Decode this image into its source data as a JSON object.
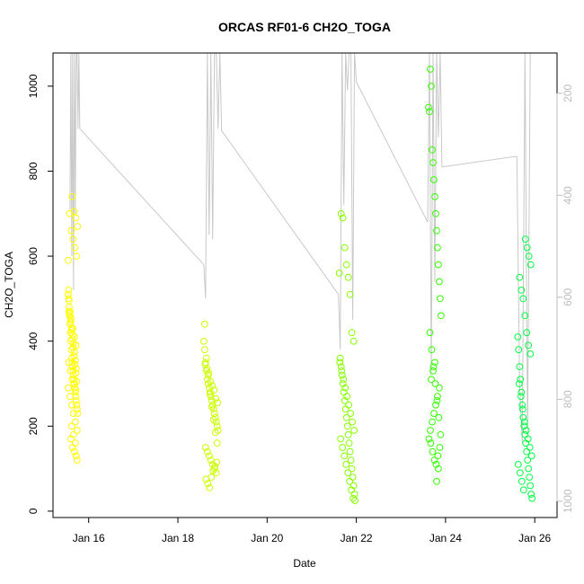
{
  "chart_data": {
    "type": "scatter",
    "title": "ORCAS RF01-6 CH2O_TOGA",
    "xlabel": "Date",
    "ylabel": "CH2O_TOGA",
    "x_ticks": [
      {
        "value": 16,
        "label": "Jan 16"
      },
      {
        "value": 18,
        "label": "Jan 18"
      },
      {
        "value": 20,
        "label": "Jan 20"
      },
      {
        "value": 22,
        "label": "Jan 22"
      },
      {
        "value": 24,
        "label": "Jan 24"
      },
      {
        "value": 26,
        "label": "Jan 26"
      }
    ],
    "xlim": [
      15.2,
      26.5
    ],
    "ylim": [
      -15,
      1078
    ],
    "y_ticks": [
      0,
      200,
      400,
      600,
      800,
      1000
    ],
    "y2_ticks": [
      200,
      400,
      600,
      800,
      1000
    ],
    "y2lim": [
      1032,
      121
    ],
    "grid": false,
    "colors": {
      "flight1": "#ffff00",
      "flight2": "#ccff00",
      "flight3": "#88ff00",
      "flight4": "#33ff00",
      "flight5": "#00ff44",
      "line": "#c8c8c8",
      "right_axis": "#bdbdbd"
    },
    "series": [
      {
        "x": [
          15.54,
          15.55,
          15.56,
          15.57,
          15.58,
          15.59,
          15.6,
          15.61,
          15.62,
          15.63,
          15.64,
          15.65,
          15.66,
          15.67,
          15.68,
          15.69,
          15.7,
          15.71,
          15.72,
          15.73,
          15.74,
          15.75,
          15.54,
          15.56,
          15.58,
          15.6,
          15.62,
          15.64,
          15.66,
          15.68,
          15.7,
          15.72,
          15.55,
          15.57,
          15.59,
          15.61,
          15.63,
          15.65,
          15.67,
          15.69,
          15.71,
          15.73,
          15.54,
          15.58,
          15.62,
          15.66,
          15.7,
          15.74,
          15.56,
          15.6,
          15.64,
          15.68,
          15.72,
          15.55,
          15.59,
          15.63,
          15.67,
          15.71,
          15.57,
          15.61,
          15.65,
          15.69,
          15.73,
          15.6,
          15.64,
          15.68,
          15.72,
          15.62,
          15.66,
          15.7,
          15.74,
          15.63,
          15.67,
          15.71,
          15.75
        ],
        "y": [
          590,
          520,
          480,
          460,
          440,
          420,
          400,
          380,
          360,
          350,
          340,
          330,
          320,
          310,
          300,
          290,
          280,
          270,
          260,
          250,
          240,
          230,
          510,
          495,
          470,
          455,
          430,
          415,
          395,
          375,
          355,
          335,
          500,
          465,
          445,
          425,
          405,
          385,
          365,
          345,
          325,
          305,
          290,
          270,
          250,
          230,
          210,
          190,
          470,
          450,
          430,
          410,
          390,
          350,
          330,
          310,
          300,
          285,
          700,
          660,
          640,
          620,
          600,
          170,
          150,
          140,
          130,
          200,
          180,
          160,
          120,
          740,
          705,
          690,
          670
        ]
      },
      {
        "x": [
          18.58,
          18.6,
          18.62,
          18.64,
          18.66,
          18.68,
          18.7,
          18.72,
          18.74,
          18.76,
          18.78,
          18.8,
          18.82,
          18.84,
          18.86,
          18.88,
          18.9,
          18.6,
          18.64,
          18.68,
          18.72,
          18.76,
          18.8,
          18.84,
          18.88,
          18.62,
          18.66,
          18.7,
          18.74,
          18.78,
          18.82,
          18.86,
          18.63,
          18.67,
          18.71,
          18.75,
          18.79,
          18.83,
          18.87,
          18.61,
          18.65,
          18.69,
          18.73,
          18.77,
          18.81,
          18.85,
          18.89
        ],
        "y": [
          400,
          380,
          350,
          330,
          310,
          300,
          290,
          280,
          270,
          260,
          250,
          240,
          230,
          220,
          210,
          200,
          190,
          440,
          360,
          320,
          275,
          245,
          215,
          185,
          160,
          150,
          140,
          130,
          120,
          110,
          100,
          90,
          75,
          65,
          55,
          80,
          95,
          105,
          115,
          345,
          335,
          325,
          305,
          295,
          285,
          265,
          255
        ]
      },
      {
        "x": [
          21.62,
          21.64,
          21.66,
          21.68,
          21.7,
          21.72,
          21.74,
          21.76,
          21.78,
          21.8,
          21.82,
          21.84,
          21.86,
          21.88,
          21.9,
          21.92,
          21.94,
          21.96,
          21.63,
          21.67,
          21.71,
          21.75,
          21.79,
          21.83,
          21.87,
          21.91,
          21.95,
          21.65,
          21.69,
          21.73,
          21.77,
          21.81,
          21.85,
          21.89,
          21.93,
          21.97,
          21.66,
          21.7,
          21.74,
          21.78,
          21.82,
          21.86,
          21.9,
          21.94
        ],
        "y": [
          560,
          360,
          340,
          320,
          300,
          280,
          260,
          240,
          220,
          200,
          180,
          160,
          140,
          120,
          100,
          80,
          60,
          40,
          350,
          330,
          310,
          290,
          270,
          250,
          230,
          210,
          190,
          170,
          150,
          130,
          110,
          90,
          70,
          50,
          30,
          25,
          700,
          690,
          620,
          580,
          550,
          510,
          420,
          400
        ]
      },
      {
        "x": [
          23.62,
          23.64,
          23.66,
          23.68,
          23.7,
          23.72,
          23.74,
          23.76,
          23.78,
          23.8,
          23.82,
          23.84,
          23.86,
          23.88,
          23.9,
          23.65,
          23.69,
          23.73,
          23.77,
          23.81,
          23.85,
          23.89,
          23.67,
          23.71,
          23.75,
          23.79,
          23.83,
          23.87,
          23.63,
          23.66,
          23.7,
          23.74,
          23.78,
          23.82,
          23.86,
          23.68,
          23.72,
          23.76,
          23.8,
          23.84
        ],
        "y": [
          950,
          940,
          1040,
          1000,
          850,
          820,
          780,
          740,
          700,
          660,
          620,
          580,
          540,
          500,
          460,
          420,
          380,
          340,
          300,
          260,
          220,
          180,
          160,
          140,
          120,
          110,
          130,
          150,
          170,
          190,
          210,
          230,
          250,
          270,
          290,
          310,
          330,
          350,
          70,
          100
        ]
      },
      {
        "x": [
          25.62,
          25.64,
          25.66,
          25.68,
          25.7,
          25.72,
          25.74,
          25.76,
          25.78,
          25.8,
          25.82,
          25.84,
          25.86,
          25.88,
          25.9,
          25.92,
          25.94,
          25.65,
          25.69,
          25.73,
          25.77,
          25.81,
          25.85,
          25.89,
          25.93,
          25.63,
          25.67,
          25.71,
          25.75,
          25.79,
          25.83,
          25.87,
          25.91,
          25.66,
          25.7,
          25.74,
          25.78,
          25.82,
          25.86,
          25.9
        ],
        "y": [
          410,
          380,
          340,
          310,
          280,
          250,
          220,
          200,
          180,
          160,
          140,
          120,
          100,
          80,
          60,
          40,
          30,
          300,
          270,
          240,
          210,
          190,
          170,
          150,
          130,
          110,
          90,
          70,
          50,
          640,
          620,
          600,
          580,
          550,
          520,
          500,
          460,
          420,
          390,
          370
        ]
      }
    ],
    "line_series": {
      "x": [
        15.58,
        15.6,
        15.62,
        15.64,
        15.66,
        15.68,
        15.7,
        15.72,
        15.74,
        15.76,
        15.78,
        15.8,
        18.58,
        18.62,
        18.66,
        18.7,
        18.74,
        18.78,
        18.82,
        18.86,
        18.9,
        18.94,
        18.98,
        21.6,
        21.64,
        21.68,
        21.72,
        21.76,
        21.8,
        21.84,
        21.88,
        21.92,
        21.96,
        22.0,
        23.6,
        23.64,
        23.68,
        23.72,
        23.76,
        23.8,
        23.84,
        23.88,
        23.92,
        25.6,
        25.66,
        25.72,
        25.78,
        25.84,
        25.9
      ],
      "y": [
        710,
        1078,
        600,
        1078,
        520,
        1078,
        700,
        1078,
        1078,
        900,
        1078,
        900,
        580,
        500,
        1078,
        650,
        1078,
        640,
        1078,
        1078,
        900,
        1078,
        895,
        510,
        380,
        1078,
        720,
        1078,
        990,
        1078,
        1078,
        450,
        1078,
        1010,
        680,
        1078,
        320,
        1078,
        540,
        1078,
        880,
        1078,
        810,
        835,
        300,
        160,
        1078,
        180,
        1078
      ]
    }
  }
}
